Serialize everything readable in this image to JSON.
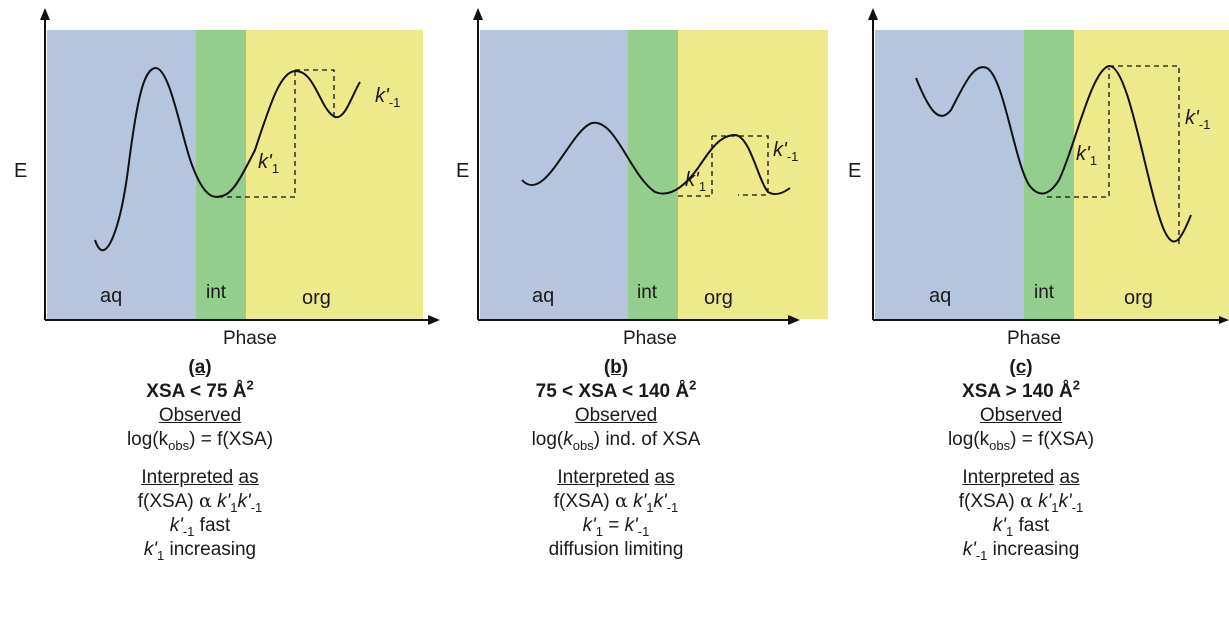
{
  "panels": [
    {
      "id": "a",
      "y_axis_label": "E",
      "x_axis_label": "Phase",
      "regions": {
        "aq": "aq",
        "int": "int",
        "org": "org"
      },
      "rate_forward": {
        "base": "k'",
        "sub": "1"
      },
      "rate_reverse": {
        "base": "k'",
        "sub": "-1"
      },
      "panel_label": "(a)",
      "condition": {
        "text": "XSA < 75 Å",
        "sup": "2"
      },
      "observed_heading": "Observed",
      "observed": {
        "pre": "log(k",
        "sub": "obs",
        "post": ") = f(XSA)",
        "italic_k": false
      },
      "interpreted_heading_1": "Interpreted",
      "interpreted_heading_2": "as",
      "interp_line1": {
        "pre": "f(XSA) ",
        "alpha": "α",
        "k1": "k'",
        "k1sub": "1",
        "k2": "k'",
        "k2sub": "-1"
      },
      "interp_line2": {
        "k": "k'",
        "sub": "-1",
        "post": " fast"
      },
      "interp_line3": {
        "k": "k'",
        "sub": "1",
        "post": " increasing"
      }
    },
    {
      "id": "b",
      "y_axis_label": "E",
      "x_axis_label": "Phase",
      "regions": {
        "aq": "aq",
        "int": "int",
        "org": "org"
      },
      "rate_forward": {
        "base": "k'",
        "sub": "1"
      },
      "rate_reverse": {
        "base": "k'",
        "sub": "-1"
      },
      "panel_label": "(b)",
      "condition": {
        "text": "75 < XSA < 140 Å",
        "sup": "2"
      },
      "observed_heading": "Observed",
      "observed": {
        "pre": "log(",
        "k": "k",
        "sub": "obs",
        "post": ") ind. of XSA",
        "italic_k": true
      },
      "interpreted_heading_1": "Interpreted",
      "interpreted_heading_2": "as",
      "interp_line1": {
        "pre": "f(XSA) ",
        "alpha": "α",
        "k1": "k'",
        "k1sub": "1",
        "k2": "k'",
        "k2sub": "-1"
      },
      "interp_line2": {
        "k": "k'",
        "sub": "1",
        "mid": " = ",
        "k2": "k'",
        "sub2": "-1"
      },
      "interp_line3": {
        "text": "diffusion limiting"
      }
    },
    {
      "id": "c",
      "y_axis_label": "E",
      "x_axis_label": "Phase",
      "regions": {
        "aq": "aq",
        "int": "int",
        "org": "org"
      },
      "rate_forward": {
        "base": "k'",
        "sub": "1"
      },
      "rate_reverse": {
        "base": "k'",
        "sub": "-1"
      },
      "panel_label": "(c)",
      "condition": {
        "text": "XSA > 140 Å",
        "sup": "2"
      },
      "observed_heading": "Observed",
      "observed": {
        "pre": "log(k",
        "sub": "obs",
        "post": ") = f(XSA)",
        "italic_k": false
      },
      "interpreted_heading_1": "Interpreted",
      "interpreted_heading_2": "as",
      "interp_line1": {
        "pre": "f(XSA) ",
        "alpha": "α",
        "k1": "k'",
        "k1sub": "1",
        "k2": "k'",
        "k2sub": "-1"
      },
      "interp_line2": {
        "k": "k'",
        "sub": "1",
        "post": " fast"
      },
      "interp_line3": {
        "k": "k'",
        "sub": "-1",
        "post": " increasing"
      }
    }
  ],
  "colors": {
    "aq": "#b4c5dd",
    "int": "#93ce8c",
    "org": "#eeea8c",
    "curve": "#111111",
    "axis": "#111111"
  }
}
